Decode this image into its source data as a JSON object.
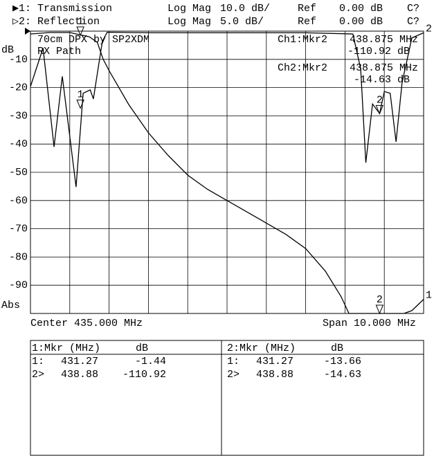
{
  "header": {
    "traces": [
      {
        "indicator": "▶1:",
        "format": "Log Mag",
        "scale": "10.0 dB/",
        "ref_label": "Ref",
        "ref": "0.00 dB",
        "status": "C?"
      },
      {
        "indicator": "▷2:",
        "format": "Log Mag",
        "scale": "5.0 dB/",
        "ref_label": "Ref",
        "ref": "0.00 dB",
        "status": "C?"
      }
    ]
  },
  "chart_data": {
    "type": "line",
    "title": "70cm DPX by SP2XDM",
    "subtitle": "RX Path",
    "y_label": "dB",
    "format_label": "Abs",
    "center": "Center 435.000 MHz",
    "span": "Span 10.000 MHz",
    "xlim": [
      430,
      440
    ],
    "xticks": [
      431,
      432,
      433,
      434,
      435,
      436,
      437,
      438,
      439
    ],
    "ylim": [
      -100,
      0
    ],
    "yticks": [
      -10,
      -20,
      -30,
      -40,
      -50,
      -60,
      -70,
      -80,
      -90
    ],
    "y2lim": [
      -50,
      0
    ],
    "grid": true,
    "marker_labels": [
      "1",
      "2"
    ],
    "series": [
      {
        "name": "Transmission",
        "trace_label": "1",
        "color": "#000000",
        "x": [
          430,
          430.5,
          431,
          431.3,
          431.5,
          431.7,
          431.85,
          432,
          432.5,
          433,
          433.5,
          434,
          434.5,
          435,
          435.5,
          436,
          436.5,
          437,
          437.5,
          437.9,
          438.1,
          438.5,
          439,
          439.5,
          439.7,
          440
        ],
        "values": [
          -1,
          -0.5,
          -0.5,
          -1.4,
          -2,
          -4,
          -10,
          -14,
          -26,
          -36,
          -44,
          -51,
          -56,
          -60,
          -64,
          -68,
          -72,
          -77,
          -85,
          -94,
          -100,
          -100,
          -100,
          -100,
          -99,
          -95
        ]
      },
      {
        "name": "Reflection",
        "trace_label": "2",
        "color": "#000000",
        "axis": "y2",
        "x": [
          430,
          430.32,
          430.6,
          430.81,
          431.16,
          431.34,
          431.52,
          431.6,
          431.83,
          431.95,
          433,
          435,
          437,
          438.2,
          438.4,
          438.53,
          438.7,
          438.88,
          439,
          439.15,
          439.3,
          439.45,
          439.7,
          440
        ],
        "values": [
          -9.8,
          -3,
          -20.5,
          -8,
          -27.6,
          -11,
          -10.4,
          -12,
          -1.8,
          -0.2,
          -0.3,
          -0.3,
          -0.3,
          -0.5,
          -6.7,
          -23.3,
          -12.9,
          -14.6,
          -10.7,
          -11,
          -19.6,
          -9.2,
          -1.2,
          -0.3
        ]
      }
    ],
    "readouts": [
      {
        "label": "Ch1:Mkr2",
        "freq": "438.875 MHz",
        "value": "-110.92 dB"
      },
      {
        "label": "Ch2:Mkr2",
        "freq": "438.875 MHz",
        "value": "-14.63 dB"
      }
    ]
  },
  "marker_table": {
    "panes": [
      {
        "header": [
          "1:Mkr (MHz)",
          "dB"
        ],
        "rows": [
          [
            "1:",
            431.27,
            -1.44
          ],
          [
            "2>",
            438.88,
            -110.92
          ]
        ]
      },
      {
        "header": [
          "2:Mkr (MHz)",
          "dB"
        ],
        "rows": [
          [
            "1:",
            431.27,
            -13.66
          ],
          [
            "2>",
            438.88,
            -14.63
          ]
        ]
      }
    ]
  }
}
